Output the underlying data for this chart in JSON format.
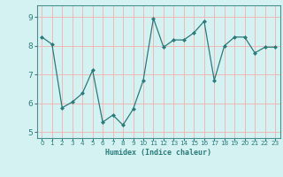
{
  "x": [
    0,
    1,
    2,
    3,
    4,
    5,
    6,
    7,
    8,
    9,
    10,
    11,
    12,
    13,
    14,
    15,
    16,
    17,
    18,
    19,
    20,
    21,
    22,
    23
  ],
  "y": [
    8.3,
    8.05,
    5.85,
    6.05,
    6.35,
    7.15,
    5.35,
    5.6,
    5.25,
    5.8,
    6.8,
    8.95,
    7.95,
    8.2,
    8.2,
    8.45,
    8.85,
    6.8,
    8.0,
    8.3,
    8.3,
    7.75,
    7.95,
    7.95
  ],
  "xlabel": "Humidex (Indice chaleur)",
  "xlim": [
    -0.5,
    23.5
  ],
  "ylim": [
    4.8,
    9.4
  ],
  "yticks": [
    5,
    6,
    7,
    8,
    9
  ],
  "xticks": [
    0,
    1,
    2,
    3,
    4,
    5,
    6,
    7,
    8,
    9,
    10,
    11,
    12,
    13,
    14,
    15,
    16,
    17,
    18,
    19,
    20,
    21,
    22,
    23
  ],
  "line_color": "#2b7b7b",
  "marker": "D",
  "marker_size": 2.0,
  "bg_color": "#d5f2f2",
  "grid_color": "#f0b8b8",
  "spine_color": "#4a9090",
  "tick_color": "#2b7b7b",
  "xlabel_color": "#2b7b7b",
  "xlabel_fontsize": 6.0,
  "ytick_fontsize": 6.5,
  "xtick_fontsize": 5.2
}
